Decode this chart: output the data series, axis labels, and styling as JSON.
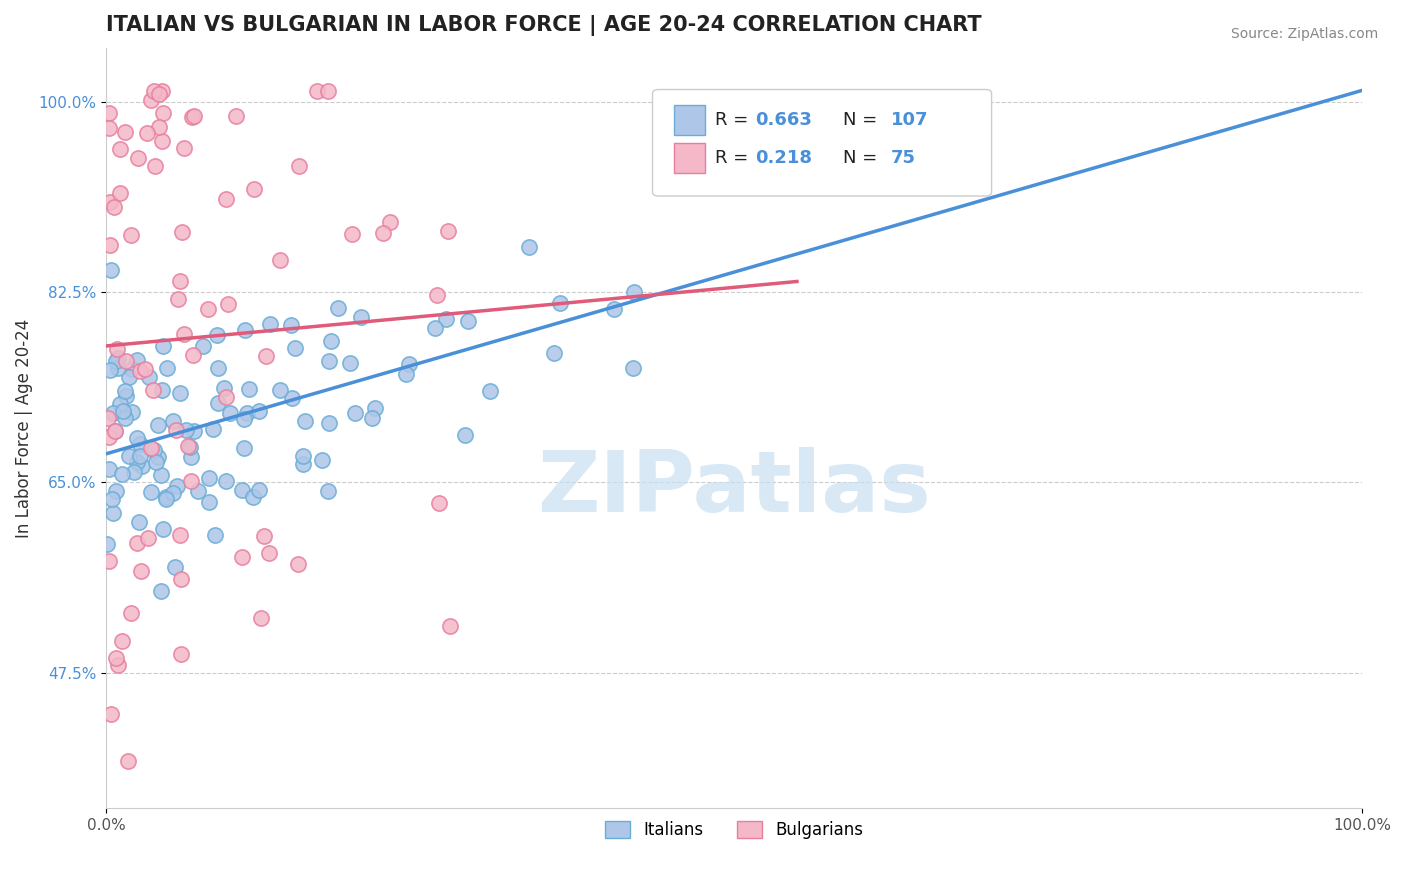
{
  "title": "ITALIAN VS BULGARIAN IN LABOR FORCE | AGE 20-24 CORRELATION CHART",
  "source_text": "Source: ZipAtlas.com",
  "xlabel": "",
  "ylabel": "In Labor Force | Age 20-24",
  "xlim": [
    0,
    1
  ],
  "ylim": [
    0.35,
    1.05
  ],
  "yticks": [
    0.475,
    0.65,
    0.825,
    1.0
  ],
  "ytick_labels": [
    "47.5%",
    "65.0%",
    "82.5%",
    "100.0%"
  ],
  "xticks": [
    0.0,
    1.0
  ],
  "xtick_labels": [
    "0.0%",
    "100.0%"
  ],
  "italian_R": 0.663,
  "italian_N": 107,
  "bulgarian_R": 0.218,
  "bulgarian_N": 75,
  "italian_color": "#aec6e8",
  "italian_edge_color": "#6aaed6",
  "bulgarian_color": "#f4b8c8",
  "bulgarian_edge_color": "#e87fa0",
  "italian_line_color": "#4a90d9",
  "bulgarian_line_color": "#e05a7a",
  "watermark_text": "ZIPatlas",
  "watermark_color": "#c8dff0",
  "background_color": "#ffffff",
  "legend_box_color": "#ffffff",
  "legend_text_color_R": "#4a90d9",
  "legend_text_color_black": "#000000",
  "title_fontsize": 15,
  "axis_label_fontsize": 12,
  "tick_fontsize": 11,
  "marker_size": 120,
  "line_width": 2.5
}
